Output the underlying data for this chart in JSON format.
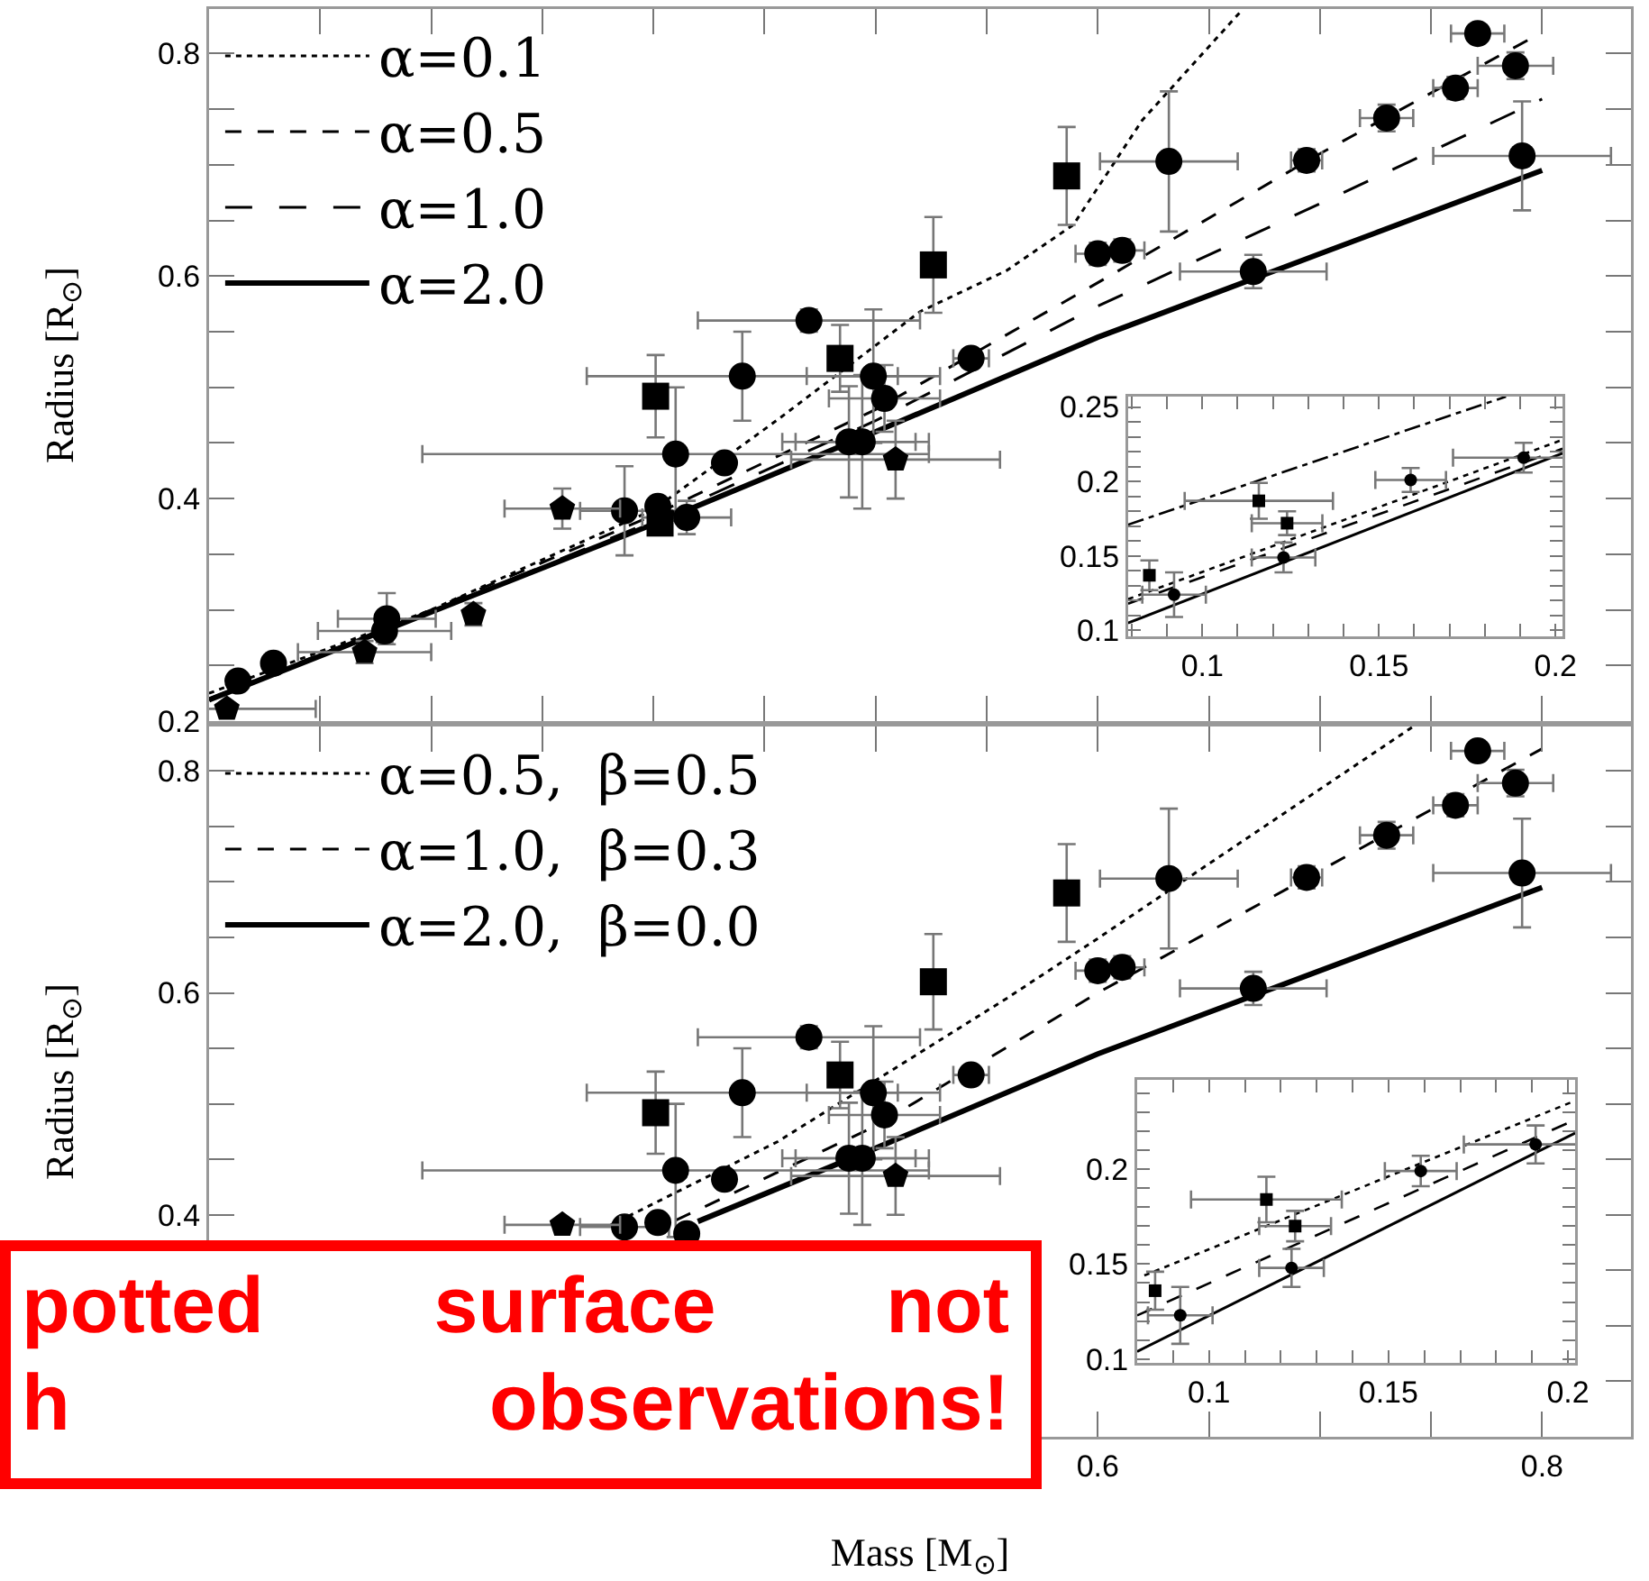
{
  "chart_data": [
    {
      "type": "scatter",
      "ylabel": "Radius [R$_{⊙}$]",
      "xlim": [
        0.2,
        0.84
      ],
      "ylim": [
        0.2,
        0.84
      ],
      "tick_labels": "y",
      "legend": "top left",
      "xticks": [
        {
          "value": 0.2,
          "label": null
        },
        {
          "value": 0.25,
          "label": null
        },
        {
          "value": 0.3,
          "label": null
        },
        {
          "value": 0.35,
          "label": null
        },
        {
          "value": 0.4,
          "label": null
        },
        {
          "value": 0.45,
          "label": null
        },
        {
          "value": 0.5,
          "label": null
        },
        {
          "value": 0.55,
          "label": null
        },
        {
          "value": 0.6,
          "label": null
        },
        {
          "value": 0.65,
          "label": null
        },
        {
          "value": 0.7,
          "label": null
        },
        {
          "value": 0.75,
          "label": null
        },
        {
          "value": 0.8,
          "label": null
        }
      ],
      "yticks": [
        0.2,
        {
          "value": 0.25,
          "label": null
        },
        {
          "value": 0.3,
          "label": null
        },
        {
          "value": 0.35,
          "label": null
        },
        0.4,
        {
          "value": 0.45,
          "label": null
        },
        {
          "value": 0.5,
          "label": null
        },
        {
          "value": 0.55,
          "label": null
        },
        0.6,
        {
          "value": 0.65,
          "label": null
        },
        {
          "value": 0.7,
          "label": null
        },
        {
          "value": 0.75,
          "label": null
        },
        0.8
      ],
      "series": [
        {
          "name": "α=0.1",
          "type": "line",
          "line_style": "dotted",
          "color": "#000000",
          "x": [
            0.2,
            0.3,
            0.4,
            0.456,
            0.52,
            0.559,
            0.589,
            0.62,
            0.664
          ],
          "values": [
            0.225,
            0.3,
            0.39,
            0.471,
            0.568,
            0.605,
            0.646,
            0.74,
            0.837
          ]
        },
        {
          "name": "α=0.5",
          "type": "line",
          "line_style": "dashed",
          "color": "#000000",
          "x": [
            0.2,
            0.3,
            0.4,
            0.5,
            0.6,
            0.7,
            0.8
          ],
          "values": [
            0.22,
            0.3,
            0.385,
            0.48,
            0.594,
            0.71,
            0.819
          ]
        },
        {
          "name": "α=1.0",
          "type": "line",
          "line_style": "longdash",
          "color": "#000000",
          "x": [
            0.2,
            0.3,
            0.4,
            0.5,
            0.6,
            0.7,
            0.8
          ],
          "values": [
            0.219,
            0.298,
            0.38,
            0.47,
            0.573,
            0.665,
            0.759
          ]
        },
        {
          "name": "α=2.0",
          "type": "line",
          "line_style": "solid",
          "color": "#000000",
          "x": [
            0.2,
            0.3,
            0.4,
            0.5,
            0.6,
            0.7,
            0.8
          ],
          "values": [
            0.219,
            0.298,
            0.377,
            0.46,
            0.545,
            0.62,
            0.695
          ]
        },
        {
          "type": "scatter",
          "marker": "circle",
          "color": "#000000",
          "x": [
            0.213,
            0.229,
            0.28,
            0.279,
            0.387,
            0.402,
            0.415,
            0.41,
            0.432,
            0.44,
            0.47,
            0.499,
            0.504,
            0.488,
            0.494,
            0.543,
            0.6,
            0.611,
            0.632,
            0.67,
            0.694,
            0.73,
            0.761,
            0.771,
            0.788,
            0.791
          ],
          "values": [
            0.236,
            0.252,
            0.292,
            0.281,
            0.389,
            0.393,
            0.383,
            0.44,
            0.432,
            0.51,
            0.56,
            0.51,
            0.49,
            0.451,
            0.451,
            0.526,
            0.62,
            0.623,
            0.703,
            0.604,
            0.704,
            0.742,
            0.769,
            0.818,
            0.789,
            0.708
          ],
          "errors": [
            null,
            null,
            0.023,
            0.01,
            0.04,
            null,
            0.015,
            0.06,
            null,
            0.04,
            0.01,
            0.06,
            0.03,
            0.05,
            0.06,
            0.008,
            0.01,
            0.01,
            0.063,
            0.015,
            0.01,
            0.012,
            0.01,
            0.008,
            0.012,
            0.049
          ],
          "xerrors": [
            null,
            null,
            0.022,
            0.03,
            0.02,
            null,
            0.02,
            0.114,
            null,
            0.07,
            0.05,
            0.03,
            0.025,
            0.03,
            0.03,
            0.008,
            0.01,
            0.01,
            0.031,
            0.033,
            0.007,
            0.012,
            0.01,
            0.012,
            0.017,
            0.04
          ]
        },
        {
          "type": "scatter",
          "marker": "square",
          "color": "#000000",
          "x": [
            0.403,
            0.401,
            0.484,
            0.526,
            0.586
          ],
          "values": [
            0.378,
            0.492,
            0.526,
            0.61,
            0.69
          ],
          "errors": [
            null,
            0.037,
            0.03,
            0.043,
            0.044
          ]
        },
        {
          "type": "scatter",
          "color": "#000000",
          "x": [
            0.208,
            0.27,
            0.319,
            0.359,
            0.509
          ],
          "values": [
            0.211,
            0.262,
            0.296,
            0.391,
            0.435
          ],
          "errors": [
            null,
            0.01,
            0.01,
            0.018,
            0.035
          ],
          "xerrors": [
            0.04,
            0.03,
            null,
            0.026,
            0.047
          ]
        }
      ]
    },
    {
      "type": "scatter",
      "xlim": [
        0.079,
        0.202
      ],
      "ylim": [
        0.096,
        0.257
      ],
      "xticks": [
        0.1,
        0.15,
        0.2,
        {
          "value": 0.08,
          "label": null
        },
        {
          "value": 0.09,
          "label": null
        },
        {
          "value": 0.11,
          "label": null
        },
        {
          "value": 0.12,
          "label": null
        },
        {
          "value": 0.13,
          "label": null
        },
        {
          "value": 0.14,
          "label": null
        },
        {
          "value": 0.16,
          "label": null
        },
        {
          "value": 0.17,
          "label": null
        },
        {
          "value": 0.18,
          "label": null
        },
        {
          "value": 0.19,
          "label": null
        }
      ],
      "yticks": [
        0.1,
        0.15,
        0.2,
        0.25,
        {
          "value": 0.11,
          "label": null
        },
        {
          "value": 0.12,
          "label": null
        },
        {
          "value": 0.13,
          "label": null
        },
        {
          "value": 0.14,
          "label": null
        },
        {
          "value": 0.16,
          "label": null
        },
        {
          "value": 0.17,
          "label": null
        },
        {
          "value": 0.18,
          "label": null
        },
        {
          "value": 0.19,
          "label": null
        },
        {
          "value": 0.21,
          "label": null
        },
        {
          "value": 0.22,
          "label": null
        },
        {
          "value": 0.23,
          "label": null
        },
        {
          "value": 0.24,
          "label": null
        }
      ],
      "series": [
        {
          "type": "line",
          "line_style": "dashdot",
          "color": "#000000",
          "x": [
            0.079,
            0.186
          ],
          "values": [
            0.171,
            0.257
          ]
        },
        {
          "type": "line",
          "line_style": "dotted",
          "color": "#000000",
          "x": [
            0.079,
            0.202
          ],
          "values": [
            0.121,
            0.228
          ]
        },
        {
          "type": "line",
          "line_style": "dashed",
          "color": "#000000",
          "x": [
            0.079,
            0.202
          ],
          "values": [
            0.118,
            0.222
          ]
        },
        {
          "type": "line",
          "line_style": "solid",
          "color": "#000000",
          "x": [
            0.079,
            0.202
          ],
          "values": [
            0.105,
            0.219
          ]
        },
        {
          "type": "scatter",
          "marker": "square",
          "color": "#000000",
          "x": [
            0.085,
            0.116,
            0.124
          ],
          "values": [
            0.137,
            0.187,
            0.172
          ],
          "errors": [
            0.01,
            0.012,
            0.008
          ],
          "xerrors": [
            null,
            0.021,
            0.01
          ]
        },
        {
          "type": "scatter",
          "marker": "circle",
          "color": "#000000",
          "x": [
            0.092,
            0.123,
            0.159,
            0.191
          ],
          "values": [
            0.124,
            0.149,
            0.201,
            0.216
          ],
          "errors": [
            0.015,
            0.01,
            0.008,
            0.01
          ],
          "xerrors": [
            0.009,
            0.009,
            0.01,
            0.02
          ]
        }
      ]
    },
    {
      "type": "scatter",
      "ylabel": "Radius [R$_{⊙}$]",
      "xlabel": "Mass [M$_{⊙}$]",
      "xlim": [
        0.2,
        0.84
      ],
      "ylim": [
        0.2,
        0.84
      ],
      "legend": "top left",
      "annotations": [
        "potted surface not\nh observations!"
      ],
      "xticks": [
        {
          "value": 0.25,
          "label": null
        },
        {
          "value": 0.3,
          "label": null
        },
        {
          "value": 0.35,
          "label": null
        },
        {
          "value": 0.45,
          "label": null
        },
        {
          "value": 0.5,
          "label": null
        },
        {
          "value": 0.55,
          "label": null
        },
        0.6,
        {
          "value": 0.65,
          "label": null
        },
        {
          "value": 0.7,
          "label": null
        },
        {
          "value": 0.75,
          "label": null
        },
        0.8
      ],
      "yticks": [
        {
          "value": 0.25,
          "label": null
        },
        {
          "value": 0.3,
          "label": null
        },
        {
          "value": 0.35,
          "label": null
        },
        0.4,
        {
          "value": 0.45,
          "label": null
        },
        {
          "value": 0.5,
          "label": null
        },
        {
          "value": 0.55,
          "label": null
        },
        0.6,
        {
          "value": 0.65,
          "label": null
        },
        {
          "value": 0.7,
          "label": null
        },
        {
          "value": 0.75,
          "label": null
        },
        0.8
      ],
      "series": [
        {
          "name": "α=0.5,  β=0.5",
          "type": "line",
          "line_style": "dotted",
          "color": "#000000",
          "x": [
            0.38,
            0.456,
            0.559,
            0.6,
            0.742
          ],
          "values": [
            0.39,
            0.466,
            0.595,
            0.649,
            0.84
          ]
        },
        {
          "name": "α=1.0,  β=0.3",
          "type": "line",
          "line_style": "dashed",
          "color": "#000000",
          "x": [
            0.41,
            0.5,
            0.6,
            0.7,
            0.8
          ],
          "values": [
            0.395,
            0.48,
            0.6,
            0.71,
            0.82
          ]
        },
        {
          "name": "α=2.0,  β=0.0",
          "type": "line",
          "line_style": "solid",
          "color": "#000000",
          "x": [
            0.42,
            0.5,
            0.6,
            0.7,
            0.8
          ],
          "values": [
            0.394,
            0.46,
            0.545,
            0.62,
            0.695
          ]
        },
        {
          "type": "scatter",
          "marker": "circle",
          "color": "#000000",
          "x": [
            0.387,
            0.402,
            0.415,
            0.41,
            0.432,
            0.44,
            0.47,
            0.499,
            0.504,
            0.488,
            0.494,
            0.543,
            0.6,
            0.611,
            0.632,
            0.67,
            0.694,
            0.73,
            0.761,
            0.771,
            0.788,
            0.791
          ],
          "values": [
            0.389,
            0.393,
            0.383,
            0.44,
            0.432,
            0.51,
            0.56,
            0.51,
            0.49,
            0.451,
            0.451,
            0.526,
            0.62,
            0.623,
            0.703,
            0.604,
            0.704,
            0.742,
            0.769,
            0.818,
            0.789,
            0.708
          ],
          "errors": [
            null,
            null,
            null,
            0.06,
            null,
            0.04,
            0.01,
            0.06,
            0.03,
            0.05,
            0.06,
            0.008,
            0.01,
            0.01,
            0.063,
            0.015,
            0.01,
            0.012,
            0.01,
            0.008,
            0.012,
            0.049
          ],
          "xerrors": [
            0.02,
            null,
            null,
            0.114,
            null,
            0.07,
            0.05,
            0.03,
            0.025,
            0.03,
            0.03,
            0.008,
            0.01,
            0.01,
            0.031,
            0.033,
            0.007,
            0.012,
            0.01,
            0.012,
            0.017,
            0.04
          ]
        },
        {
          "type": "scatter",
          "marker": "square",
          "color": "#000000",
          "x": [
            0.401,
            0.484,
            0.526,
            0.586
          ],
          "values": [
            0.492,
            0.526,
            0.61,
            0.69
          ],
          "errors": [
            0.037,
            0.03,
            0.043,
            0.044
          ]
        },
        {
          "type": "scatter",
          "color": "#000000",
          "x": [
            0.359,
            0.509
          ],
          "values": [
            0.391,
            0.435
          ],
          "errors": [
            null,
            0.035
          ],
          "xerrors": [
            0.026,
            0.047
          ]
        }
      ]
    },
    {
      "type": "scatter",
      "xlim": [
        0.08,
        0.202
      ],
      "ylim": [
        0.098,
        0.247
      ],
      "xticks": [
        0.1,
        0.15,
        0.2,
        {
          "value": 0.09,
          "label": null
        },
        {
          "value": 0.11,
          "label": null
        },
        {
          "value": 0.12,
          "label": null
        },
        {
          "value": 0.13,
          "label": null
        },
        {
          "value": 0.14,
          "label": null
        },
        {
          "value": 0.16,
          "label": null
        },
        {
          "value": 0.17,
          "label": null
        },
        {
          "value": 0.18,
          "label": null
        },
        {
          "value": 0.19,
          "label": null
        }
      ],
      "yticks": [
        0.1,
        0.15,
        0.2,
        {
          "value": 0.11,
          "label": null
        },
        {
          "value": 0.12,
          "label": null
        },
        {
          "value": 0.13,
          "label": null
        },
        {
          "value": 0.14,
          "label": null
        },
        {
          "value": 0.16,
          "label": null
        },
        {
          "value": 0.17,
          "label": null
        },
        {
          "value": 0.18,
          "label": null
        },
        {
          "value": 0.19,
          "label": null
        },
        {
          "value": 0.21,
          "label": null
        },
        {
          "value": 0.22,
          "label": null
        },
        {
          "value": 0.23,
          "label": null
        },
        {
          "value": 0.24,
          "label": null
        }
      ],
      "series": [
        {
          "type": "line",
          "line_style": "dotted",
          "color": "#000000",
          "x": [
            0.082,
            0.202
          ],
          "values": [
            0.144,
            0.236
          ]
        },
        {
          "type": "line",
          "line_style": "dashed",
          "color": "#000000",
          "x": [
            0.08,
            0.202
          ],
          "values": [
            0.123,
            0.226
          ]
        },
        {
          "type": "line",
          "line_style": "solid",
          "color": "#000000",
          "x": [
            0.08,
            0.202
          ],
          "values": [
            0.104,
            0.219
          ]
        },
        {
          "type": "scatter",
          "marker": "square",
          "color": "#000000",
          "x": [
            0.085,
            0.116,
            0.124
          ],
          "values": [
            0.136,
            0.184,
            0.17
          ],
          "errors": [
            0.01,
            0.012,
            0.008
          ],
          "xerrors": [
            null,
            0.021,
            0.01
          ]
        },
        {
          "type": "scatter",
          "marker": "circle",
          "color": "#000000",
          "x": [
            0.092,
            0.123,
            0.159,
            0.191
          ],
          "values": [
            0.123,
            0.148,
            0.199,
            0.213
          ],
          "errors": [
            0.015,
            0.01,
            0.008,
            0.01
          ],
          "xerrors": [
            0.009,
            0.009,
            0.01,
            0.02
          ]
        }
      ]
    }
  ]
}
